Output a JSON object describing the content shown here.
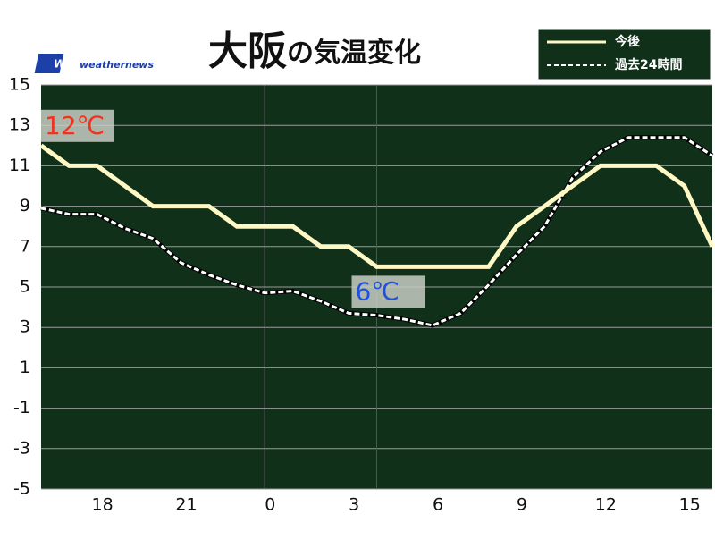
{
  "chart_data": {
    "type": "line",
    "title": "大阪",
    "title_suffix": "の気温変化",
    "logo": "weathernews",
    "x": [
      16,
      17,
      18,
      19,
      20,
      21,
      22,
      23,
      24,
      25,
      26,
      27,
      28,
      29,
      30,
      31,
      32,
      33,
      34,
      35,
      36,
      37,
      38,
      39,
      40
    ],
    "series": [
      {
        "name": "今後",
        "color": "#fff8c4",
        "dash": false,
        "values": [
          12,
          11,
          11,
          10,
          9,
          9,
          9,
          8,
          8,
          8,
          7,
          7,
          6,
          6,
          6,
          6,
          6,
          8,
          9,
          10,
          11,
          11,
          11,
          10,
          7
        ]
      },
      {
        "name": "過去24時間",
        "color": "#ffffff",
        "dash": true,
        "values": [
          8.9,
          8.6,
          8.6,
          7.9,
          7.4,
          6.2,
          5.6,
          5.1,
          4.7,
          4.8,
          4.3,
          3.7,
          3.6,
          3.4,
          3.1,
          3.7,
          5.1,
          6.6,
          8.0,
          10.4,
          11.7,
          12.4,
          12.4,
          12.4,
          11.5
        ]
      }
    ],
    "xlim": [
      16,
      40
    ],
    "xticks": [
      {
        "value": 18,
        "label": "18"
      },
      {
        "value": 21,
        "label": "21"
      },
      {
        "value": 24,
        "label": "0"
      },
      {
        "value": 27,
        "label": "3"
      },
      {
        "value": 30,
        "label": "6"
      },
      {
        "value": 33,
        "label": "9"
      },
      {
        "value": 36,
        "label": "12"
      },
      {
        "value": 39,
        "label": "15"
      }
    ],
    "ylim": [
      -5,
      15
    ],
    "yticks": [
      15,
      13,
      11,
      9,
      7,
      5,
      3,
      1,
      -1,
      -3,
      -5
    ],
    "grid": true,
    "vlines": [
      {
        "x": 24,
        "color": "#b0b0b0"
      },
      {
        "x": 28,
        "color": "#2a4fd8"
      }
    ],
    "annotations": [
      {
        "text": "12℃",
        "x": 16,
        "y": 12,
        "color": "#f0321e"
      },
      {
        "text": "6℃",
        "x": 28,
        "y": 6,
        "color": "#1f50e0"
      }
    ],
    "legend": "top-right"
  }
}
